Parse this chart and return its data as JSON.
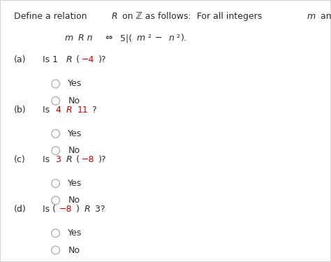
{
  "bg_color": "#ffffff",
  "border_color": "#cccccc",
  "text_color": "#2b2b2b",
  "red_color": "#cc0000",
  "options": [
    "Yes",
    "No"
  ],
  "circle_color": "#aaaaaa",
  "questions": [
    {
      "label": "(a)",
      "parts": [
        {
          "t": "Is 1 ",
          "c": "#2b2b2b",
          "s": "normal"
        },
        {
          "t": "R",
          "c": "#2b2b2b",
          "s": "italic"
        },
        {
          "t": " (−4)?",
          "c": "#2b2b2b",
          "s": "normal",
          "red_inner": "−4",
          "pre": " (",
          "post": ")?",
          "red_c": "#cc0000"
        }
      ],
      "q_str": [
        {
          "t": "Is 1 ",
          "c": "#2b2b2b",
          "s": "normal"
        },
        {
          "t": "R",
          "c": "#2b2b2b",
          "s": "italic"
        },
        {
          "t": " (",
          "c": "#2b2b2b",
          "s": "normal"
        },
        {
          "t": "−4",
          "c": "#cc0000",
          "s": "normal"
        },
        {
          "t": ")?",
          "c": "#2b2b2b",
          "s": "normal"
        }
      ]
    },
    {
      "label": "(b)",
      "q_str": [
        {
          "t": "Is ",
          "c": "#2b2b2b",
          "s": "normal"
        },
        {
          "t": "4",
          "c": "#cc0000",
          "s": "normal"
        },
        {
          "t": " ",
          "c": "#2b2b2b",
          "s": "normal"
        },
        {
          "t": "R",
          "c": "#cc0000",
          "s": "italic"
        },
        {
          "t": " ",
          "c": "#2b2b2b",
          "s": "normal"
        },
        {
          "t": "11",
          "c": "#cc0000",
          "s": "normal"
        },
        {
          "t": "?",
          "c": "#2b2b2b",
          "s": "normal"
        }
      ]
    },
    {
      "label": "(c)",
      "q_str": [
        {
          "t": "Is ",
          "c": "#2b2b2b",
          "s": "normal"
        },
        {
          "t": "3",
          "c": "#cc0000",
          "s": "normal"
        },
        {
          "t": " ",
          "c": "#2b2b2b",
          "s": "normal"
        },
        {
          "t": "R",
          "c": "#2b2b2b",
          "s": "italic"
        },
        {
          "t": " (",
          "c": "#2b2b2b",
          "s": "normal"
        },
        {
          "t": "−8",
          "c": "#cc0000",
          "s": "normal"
        },
        {
          "t": ")?",
          "c": "#2b2b2b",
          "s": "normal"
        }
      ]
    },
    {
      "label": "(d)",
      "q_str": [
        {
          "t": "Is (",
          "c": "#2b2b2b",
          "s": "normal"
        },
        {
          "t": "−8",
          "c": "#cc0000",
          "s": "normal"
        },
        {
          "t": ") ",
          "c": "#2b2b2b",
          "s": "normal"
        },
        {
          "t": "R",
          "c": "#2b2b2b",
          "s": "italic"
        },
        {
          "t": " 3?",
          "c": "#2b2b2b",
          "s": "normal"
        }
      ]
    }
  ]
}
